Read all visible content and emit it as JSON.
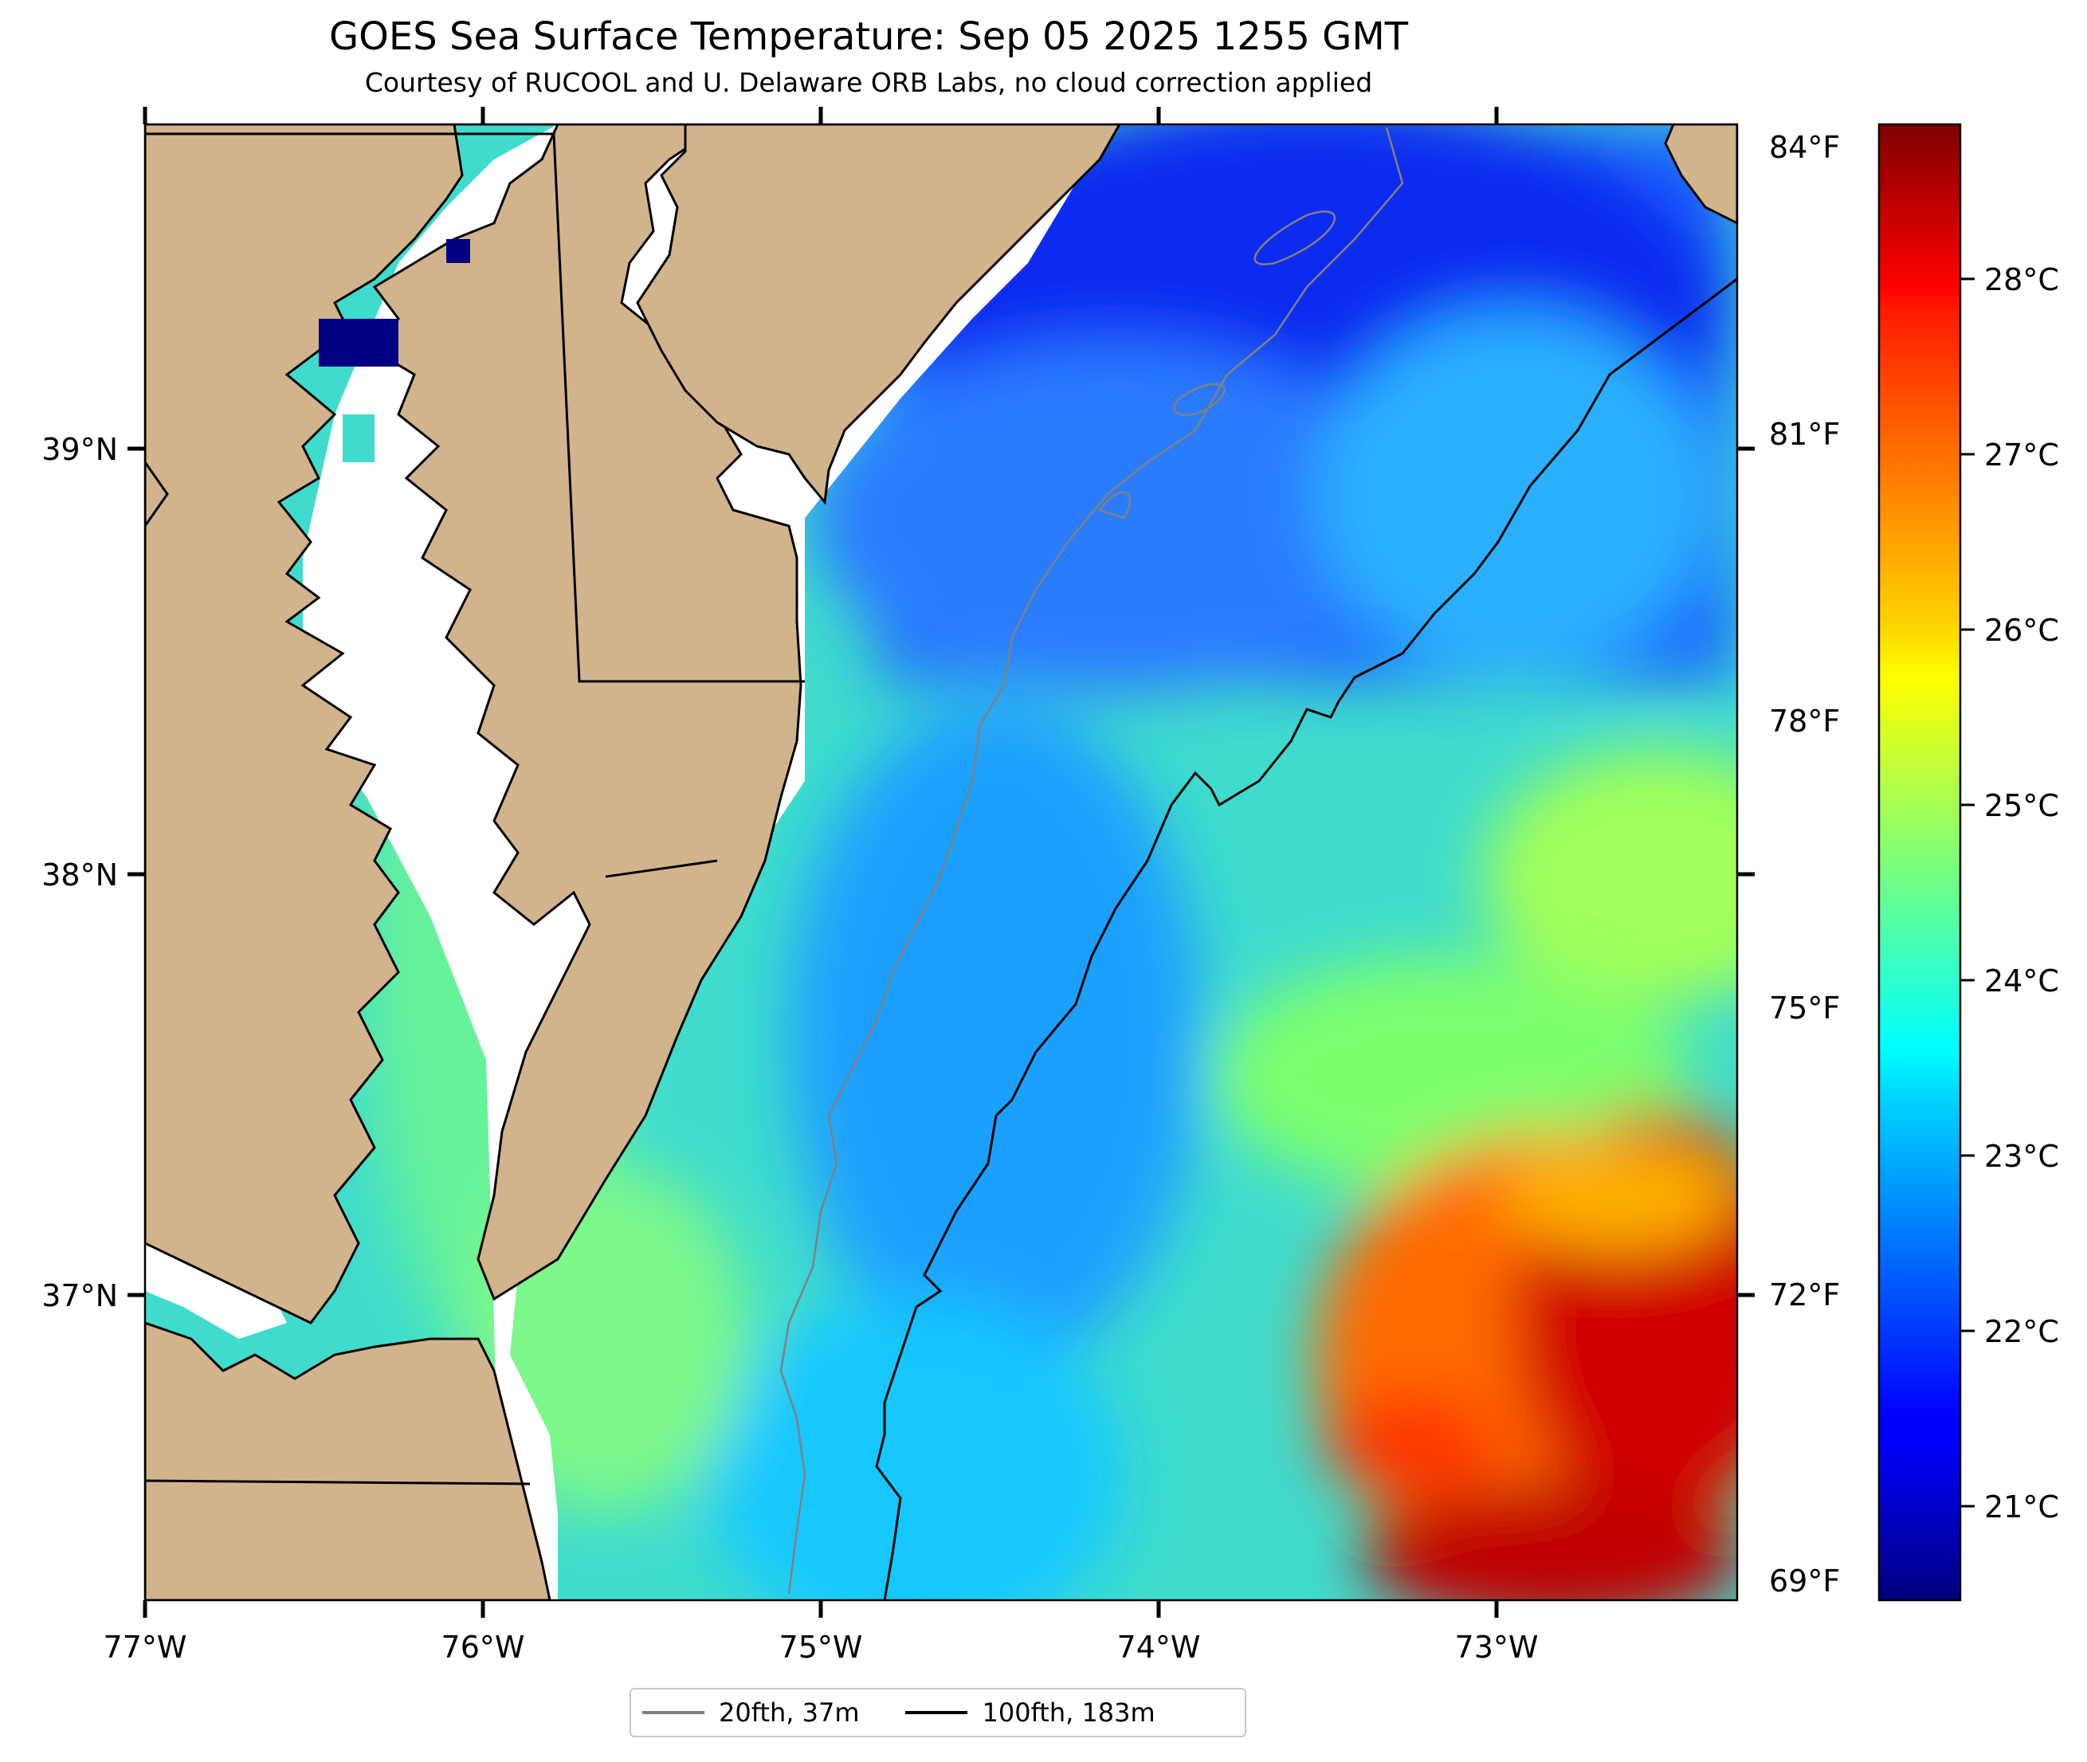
{
  "header": {
    "title": "GOES Sea Surface Temperature: Sep 05 2025 1255 GMT",
    "subtitle": "Courtesy of RUCOOL and U. Delaware ORB Labs, no cloud correction applied"
  },
  "map": {
    "lon_range": [
      -77.0,
      -72.3
    ],
    "lat_range": [
      36.3,
      39.75
    ],
    "lon_ticks": [
      "77°W",
      "76°W",
      "75°W",
      "74°W",
      "73°W"
    ],
    "lat_ticks": [
      "39°N",
      "38°N",
      "37°N"
    ],
    "colors": {
      "land": "#d2b48c",
      "no_data": "#ffffff",
      "coast": "#000000",
      "contour_20fth": "#808080",
      "contour_100fth": "#000000"
    }
  },
  "colorbar": {
    "colormap": "jet",
    "celsius_range": [
      20.5,
      28.9
    ],
    "celsius_ticks": [
      "21°C",
      "22°C",
      "23°C",
      "24°C",
      "25°C",
      "26°C",
      "27°C",
      "28°C"
    ],
    "fahrenheit_ticks": [
      "69°F",
      "72°F",
      "75°F",
      "78°F",
      "81°F",
      "84°F"
    ]
  },
  "legend": {
    "items": [
      {
        "label": "20fth, 37m",
        "color": "#808080"
      },
      {
        "label": "100fth, 183m",
        "color": "#000000"
      }
    ]
  }
}
